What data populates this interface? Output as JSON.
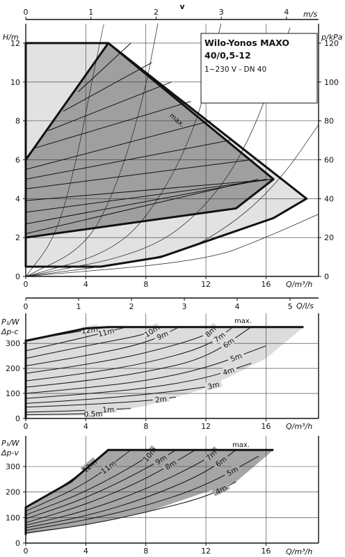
{
  "chart_data": [
    {
      "type": "line",
      "title": "Wilo-Yonos MAXO 40/0,5-12",
      "subtitle": "1~230 V - DN 40",
      "top_axis_label": "v",
      "top_axis_unit": "m/s",
      "top_ticks": [
        "0",
        "1",
        "2",
        "3",
        "4"
      ],
      "top_range": [
        0,
        4.2
      ],
      "ylabel": "H/m",
      "y2label": "p/kPa",
      "xlabel": "Q/m³/h",
      "xlim": [
        0,
        19.5
      ],
      "ylim": [
        0,
        13
      ],
      "y2lim": [
        0,
        130
      ],
      "x_ticks": [
        "0",
        "4",
        "8",
        "12",
        "16"
      ],
      "y_ticks": [
        "0",
        "2",
        "4",
        "6",
        "8",
        "10",
        "12"
      ],
      "y2_ticks": [
        "0",
        "20",
        "40",
        "60",
        "80",
        "100",
        "120"
      ],
      "max_label": "max.",
      "outer_envelope": [
        [
          0,
          0.5
        ],
        [
          0,
          12
        ],
        [
          5.5,
          12
        ],
        [
          18.7,
          4
        ],
        [
          16.5,
          3
        ],
        [
          9,
          1
        ],
        [
          5,
          0.5
        ]
      ],
      "variable_region": [
        [
          0,
          2
        ],
        [
          0,
          6
        ],
        [
          5.5,
          12
        ],
        [
          16.5,
          5
        ],
        [
          14,
          3.5
        ],
        [
          0,
          2
        ]
      ],
      "control_lines": [
        [
          [
            0,
            2.2
          ],
          [
            15.5,
            5.0
          ]
        ],
        [
          [
            0,
            2.7
          ],
          [
            16.0,
            5.0
          ]
        ],
        [
          [
            0,
            3.3
          ],
          [
            16.4,
            5.0
          ]
        ],
        [
          [
            0,
            3.9
          ],
          [
            16.5,
            5.0
          ]
        ],
        [
          [
            0,
            4.5
          ],
          [
            15.0,
            6.0
          ]
        ],
        [
          [
            0,
            5.0
          ],
          [
            13.6,
            7.0
          ]
        ],
        [
          [
            0,
            5.5
          ],
          [
            12.3,
            8.0
          ]
        ],
        [
          [
            0.6,
            6.6
          ],
          [
            11.0,
            9.0
          ]
        ],
        [
          [
            1.5,
            7.5
          ],
          [
            9.7,
            10.0
          ]
        ],
        [
          [
            2.5,
            8.5
          ],
          [
            8.4,
            11.0
          ]
        ],
        [
          [
            3.5,
            9.5
          ],
          [
            7.0,
            12.0
          ]
        ]
      ],
      "system_curves": [
        [
          [
            0,
            0
          ],
          [
            2,
            2
          ],
          [
            3.4,
            6
          ],
          [
            4.4,
            10
          ],
          [
            5.2,
            13
          ]
        ],
        [
          [
            0,
            0
          ],
          [
            4,
            1.5
          ],
          [
            6,
            4.5
          ],
          [
            7.8,
            9
          ],
          [
            8.8,
            13
          ]
        ],
        [
          [
            0,
            0
          ],
          [
            6,
            1.3
          ],
          [
            9,
            4
          ],
          [
            11.5,
            8
          ],
          [
            13,
            13
          ]
        ],
        [
          [
            0,
            0
          ],
          [
            8,
            1.2
          ],
          [
            12,
            3.5
          ],
          [
            15,
            7
          ],
          [
            17.6,
            12.8
          ]
        ],
        [
          [
            0,
            0
          ],
          [
            10,
            1
          ],
          [
            14,
            2.8
          ],
          [
            17,
            5
          ],
          [
            19.5,
            7.8
          ]
        ],
        [
          [
            0,
            0
          ],
          [
            12,
            0.8
          ],
          [
            16,
            2
          ],
          [
            19.5,
            3.2
          ]
        ]
      ]
    },
    {
      "type": "line",
      "ylabel": "P₁/W",
      "ylabel2": "Δp-c",
      "xlabel": "Q/l/s",
      "top_ticks": [
        "0",
        "1",
        "2",
        "3",
        "4",
        "5"
      ],
      "top_range": [
        0,
        5.4
      ],
      "xlabel_bottom": "Q/m³/h",
      "x_ticks": [
        "0",
        "4",
        "8",
        "12",
        "16"
      ],
      "y_ticks": [
        "0",
        "100",
        "200",
        "300"
      ],
      "xlim": [
        0,
        19.5
      ],
      "ylim": [
        0,
        420
      ],
      "max_label": "max.",
      "envelope": [
        [
          0,
          0
        ],
        [
          0,
          310
        ],
        [
          4,
          360
        ],
        [
          5.5,
          365
        ],
        [
          18.5,
          365
        ],
        [
          16,
          240
        ],
        [
          12,
          120
        ],
        [
          8,
          50
        ],
        [
          5,
          20
        ],
        [
          4,
          12
        ],
        [
          0,
          10
        ]
      ],
      "curves": [
        {
          "label": "12m",
          "points": [
            [
              0,
              310
            ],
            [
              3,
              343
            ],
            [
              5.5,
              365
            ]
          ]
        },
        {
          "label": "11m",
          "points": [
            [
              0,
              270
            ],
            [
              4,
              325
            ],
            [
              6.7,
              365
            ]
          ]
        },
        {
          "label": "10m",
          "points": [
            [
              0,
              240
            ],
            [
              4,
              290
            ],
            [
              8,
              335
            ],
            [
              8.8,
              365
            ]
          ]
        },
        {
          "label": "9m",
          "points": [
            [
              0,
              210
            ],
            [
              4,
              250
            ],
            [
              8,
              300
            ],
            [
              10.2,
              365
            ]
          ]
        },
        {
          "label": "8m",
          "points": [
            [
              0,
              180
            ],
            [
              4,
              215
            ],
            [
              8,
              260
            ],
            [
              12,
              330
            ],
            [
              12.6,
              365
            ]
          ]
        },
        {
          "label": "7m",
          "points": [
            [
              0,
              150
            ],
            [
              4,
              180
            ],
            [
              8,
              220
            ],
            [
              12,
              285
            ],
            [
              13.8,
              365
            ]
          ]
        },
        {
          "label": "6m",
          "points": [
            [
              0,
              125
            ],
            [
              4,
              150
            ],
            [
              8,
              185
            ],
            [
              12,
              240
            ],
            [
              15,
              365
            ]
          ]
        },
        {
          "label": "5m",
          "points": [
            [
              0,
              100
            ],
            [
              4,
              122
            ],
            [
              8,
              150
            ],
            [
              12,
              200
            ],
            [
              16,
              290
            ]
          ]
        },
        {
          "label": "4m",
          "points": [
            [
              0,
              80
            ],
            [
              4,
              98
            ],
            [
              8,
              120
            ],
            [
              12,
              160
            ],
            [
              15,
              220
            ]
          ]
        },
        {
          "label": "3m",
          "points": [
            [
              0,
              60
            ],
            [
              4,
              75
            ],
            [
              8,
              95
            ],
            [
              12,
              125
            ],
            [
              13,
              140
            ]
          ]
        },
        {
          "label": "2m",
          "points": [
            [
              0,
              45
            ],
            [
              4,
              55
            ],
            [
              8,
              70
            ],
            [
              10,
              85
            ]
          ]
        },
        {
          "label": "1m",
          "points": [
            [
              0,
              25
            ],
            [
              4,
              32
            ],
            [
              7,
              40
            ]
          ]
        },
        {
          "label": "0.5m",
          "points": [
            [
              0,
              15
            ],
            [
              4,
              18
            ],
            [
              5,
              20
            ]
          ]
        }
      ]
    },
    {
      "type": "line",
      "ylabel": "P₁/W",
      "ylabel2": "Δp-v",
      "xlabel": "Q/m³/h",
      "x_ticks": [
        "0",
        "4",
        "8",
        "12",
        "16"
      ],
      "y_ticks": [
        "0",
        "100",
        "200",
        "300"
      ],
      "xlim": [
        0,
        19.5
      ],
      "ylim": [
        0,
        420
      ],
      "max_label": "max.",
      "envelope": [
        [
          0,
          35
        ],
        [
          0,
          140
        ],
        [
          3,
          240
        ],
        [
          5.5,
          365
        ],
        [
          16.5,
          365
        ],
        [
          14,
          240
        ],
        [
          8,
          120
        ],
        [
          4,
          70
        ],
        [
          0,
          35
        ]
      ],
      "curves": [
        {
          "label": "12m",
          "points": [
            [
              0,
              140
            ],
            [
              3,
              240
            ],
            [
              5.5,
              365
            ]
          ]
        },
        {
          "label": "11m",
          "points": [
            [
              0,
              125
            ],
            [
              4,
              230
            ],
            [
              7,
              365
            ]
          ]
        },
        {
          "label": "10m",
          "points": [
            [
              0,
              110
            ],
            [
              4,
              200
            ],
            [
              8,
              330
            ],
            [
              8.5,
              365
            ]
          ]
        },
        {
          "label": "9m",
          "points": [
            [
              0,
              95
            ],
            [
              4,
              175
            ],
            [
              8,
              290
            ],
            [
              10,
              365
            ]
          ]
        },
        {
          "label": "8m",
          "points": [
            [
              0,
              80
            ],
            [
              4,
              150
            ],
            [
              8,
              250
            ],
            [
              11.3,
              365
            ]
          ]
        },
        {
          "label": "7m",
          "points": [
            [
              0,
              70
            ],
            [
              4,
              125
            ],
            [
              8,
              210
            ],
            [
              12,
              325
            ],
            [
              12.7,
              365
            ]
          ]
        },
        {
          "label": "6m",
          "points": [
            [
              0,
              60
            ],
            [
              4,
              105
            ],
            [
              8,
              175
            ],
            [
              12,
              275
            ],
            [
              14,
              365
            ]
          ]
        },
        {
          "label": "5m",
          "points": [
            [
              0,
              50
            ],
            [
              4,
              90
            ],
            [
              8,
              145
            ],
            [
              12,
              225
            ],
            [
              15.5,
              340
            ]
          ]
        },
        {
          "label": "4m",
          "points": [
            [
              0,
              40
            ],
            [
              4,
              70
            ],
            [
              8,
              120
            ],
            [
              12,
              180
            ],
            [
              14,
              240
            ]
          ]
        }
      ]
    }
  ]
}
